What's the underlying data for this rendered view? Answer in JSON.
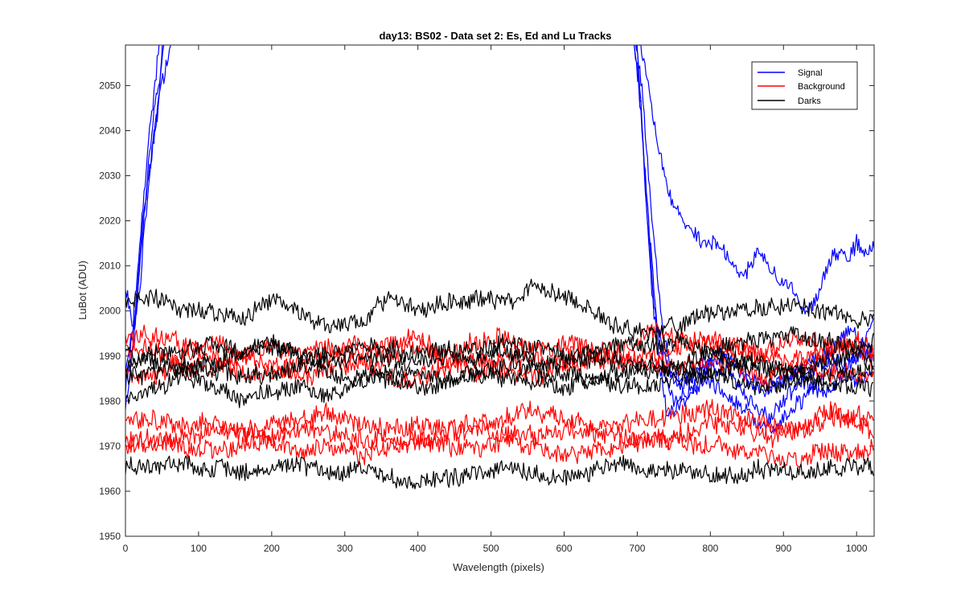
{
  "chart_data": {
    "type": "line",
    "title": "day13: BS02 - Data set 2: Es, Ed and Lu Tracks",
    "xlabel": "Wavelength (pixels)",
    "ylabel": "LuBot (ADU)",
    "xlim": [
      0,
      1024
    ],
    "ylim": [
      1950,
      2059
    ],
    "xticks": [
      0,
      100,
      200,
      300,
      400,
      500,
      600,
      700,
      800,
      900,
      1000
    ],
    "yticks": [
      1950,
      1960,
      1970,
      1980,
      1990,
      2000,
      2010,
      2020,
      2030,
      2040,
      2050
    ],
    "grid": false,
    "legend": {
      "position": "top-right",
      "entries": [
        {
          "label": "Signal",
          "color": "#0000ff"
        },
        {
          "label": "Background",
          "color": "#ff0000"
        },
        {
          "label": "Darks",
          "color": "#000000"
        }
      ]
    },
    "series": [
      {
        "group": "Signal",
        "color": "#0000ff",
        "noise": 1.6,
        "seed": 11,
        "x": [
          0,
          10,
          20,
          30,
          40,
          50,
          60,
          66,
          690,
          700,
          710,
          720,
          730,
          740,
          760,
          780,
          800,
          820,
          840,
          860,
          880,
          900,
          920,
          940,
          960,
          980,
          1000,
          1024
        ],
        "y": [
          2006,
          1995,
          2005,
          2025,
          2040,
          2050,
          2058,
          2062,
          2062,
          2060,
          2030,
          2005,
          1988,
          1978,
          1979,
          1983,
          1988,
          1987,
          1983,
          1979,
          1976,
          1980,
          1984,
          1987,
          1989,
          1986,
          1984,
          1987
        ]
      },
      {
        "group": "Signal",
        "color": "#0000ff",
        "noise": 1.6,
        "seed": 12,
        "x": [
          0,
          10,
          20,
          30,
          40,
          50,
          56,
          695,
          705,
          715,
          725,
          735,
          750,
          770,
          790,
          810,
          830,
          850,
          870,
          890,
          910,
          930,
          950,
          970,
          990,
          1010,
          1024
        ],
        "y": [
          1978,
          1990,
          2010,
          2030,
          2045,
          2055,
          2062,
          2062,
          2045,
          2020,
          2000,
          1988,
          1980,
          1982,
          1985,
          1983,
          1980,
          1977,
          1974,
          1975,
          1978,
          1981,
          1985,
          1992,
          1995,
          1993,
          1998
        ]
      },
      {
        "group": "Signal",
        "color": "#0000ff",
        "noise": 1.6,
        "seed": 13,
        "x": [
          0,
          12,
          24,
          36,
          46,
          52,
          690,
          700,
          712,
          724,
          736,
          750,
          770,
          790,
          810,
          830,
          850,
          870,
          890,
          910,
          930,
          950,
          970,
          990,
          1010,
          1024
        ],
        "y": [
          1983,
          1998,
          2020,
          2035,
          2048,
          2062,
          2062,
          2055,
          2025,
          2000,
          1990,
          1985,
          1986,
          1988,
          1991,
          1988,
          1985,
          1982,
          1983,
          1986,
          1984,
          1982,
          1983,
          1988,
          1991,
          1989
        ]
      },
      {
        "group": "Signal",
        "color": "#0000ff",
        "noise": 1.6,
        "seed": 14,
        "x": [
          0,
          10,
          20,
          30,
          40,
          48,
          696,
          706,
          716,
          726,
          736,
          746,
          760,
          780,
          800,
          820,
          840,
          860,
          880,
          900,
          920,
          940,
          960,
          980,
          1000,
          1024
        ],
        "y": [
          1986,
          1996,
          2015,
          2035,
          2050,
          2062,
          2062,
          2050,
          2030,
          2010,
          1995,
          1987,
          1984,
          1986,
          1989,
          1990,
          1987,
          1985,
          1983,
          1984,
          1987,
          1989,
          1991,
          1988,
          1990,
          1992
        ]
      },
      {
        "group": "Signal",
        "color": "#0000ff",
        "noise": 1.6,
        "seed": 15,
        "x": [
          700,
          710,
          720,
          730,
          740,
          750,
          760,
          770,
          780,
          790,
          800,
          810,
          820,
          830,
          840,
          850,
          860,
          870,
          880,
          890,
          900,
          910,
          920,
          930,
          940,
          950,
          960,
          970,
          980,
          990,
          1000,
          1010,
          1024
        ],
        "y": [
          2062,
          2055,
          2045,
          2035,
          2028,
          2023,
          2021,
          2019,
          2017,
          2016,
          2016,
          2015,
          2013,
          2011,
          2008,
          2008,
          2012,
          2013,
          2010,
          2008,
          2006,
          2006,
          2003,
          2000,
          2001,
          2005,
          2010,
          2013,
          2013,
          2012,
          2015,
          2013,
          2015
        ]
      },
      {
        "group": "Background",
        "color": "#ff0000",
        "noise": 2.0,
        "seed": 21,
        "x": [
          0,
          40,
          80,
          120,
          160,
          200,
          240,
          280,
          320,
          360,
          400,
          440,
          480,
          520,
          560,
          600,
          640,
          680,
          720,
          760,
          800,
          840,
          880,
          920,
          960,
          1000,
          1024
        ],
        "y": [
          1994,
          1994,
          1993,
          1990,
          1986,
          1986,
          1989,
          1990,
          1993,
          1990,
          1992,
          1990,
          1993,
          1994,
          1991,
          1993,
          1991,
          1992,
          1995,
          1994,
          1994,
          1991,
          1989,
          1990,
          1990,
          1994,
          1991
        ]
      },
      {
        "group": "Background",
        "color": "#ff0000",
        "noise": 2.0,
        "seed": 22,
        "x": [
          0,
          40,
          80,
          120,
          160,
          200,
          240,
          280,
          320,
          360,
          400,
          440,
          480,
          520,
          560,
          600,
          640,
          680,
          720,
          760,
          800,
          840,
          880,
          920,
          960,
          1000,
          1024
        ],
        "y": [
          1990,
          1992,
          1987,
          1987,
          1990,
          1992,
          1991,
          1992,
          1990,
          1993,
          1995,
          1988,
          1986,
          1990,
          1989,
          1988,
          1989,
          1990,
          1988,
          1988,
          1989,
          1987,
          1985,
          1988,
          1987,
          1985,
          1987
        ]
      },
      {
        "group": "Background",
        "color": "#ff0000",
        "noise": 2.0,
        "seed": 23,
        "x": [
          0,
          40,
          80,
          120,
          160,
          200,
          240,
          280,
          320,
          360,
          400,
          440,
          480,
          520,
          560,
          600,
          640,
          680,
          720,
          760,
          800,
          840,
          880,
          920,
          960,
          1000,
          1024
        ],
        "y": [
          1986,
          1985,
          1990,
          1993,
          1990,
          1988,
          1985,
          1987,
          1989,
          1986,
          1985,
          1987,
          1989,
          1987,
          1985,
          1989,
          1991,
          1988,
          1990,
          1991,
          1993,
          1992,
          1991,
          1994,
          1992,
          1991,
          1990
        ]
      },
      {
        "group": "Background",
        "color": "#ff0000",
        "noise": 2.0,
        "seed": 24,
        "x": [
          0,
          40,
          80,
          120,
          160,
          200,
          240,
          280,
          320,
          360,
          400,
          440,
          480,
          520,
          560,
          600,
          640,
          680,
          720,
          760,
          800,
          840,
          880,
          920,
          960,
          1000,
          1024
        ],
        "y": [
          1975,
          1976,
          1974,
          1975,
          1973,
          1975,
          1976,
          1977,
          1975,
          1973,
          1975,
          1974,
          1975,
          1976,
          1978,
          1976,
          1974,
          1975,
          1976,
          1977,
          1978,
          1976,
          1975,
          1973,
          1976,
          1977,
          1975
        ]
      },
      {
        "group": "Background",
        "color": "#ff0000",
        "noise": 2.0,
        "seed": 25,
        "x": [
          0,
          40,
          80,
          120,
          160,
          200,
          240,
          280,
          320,
          360,
          400,
          440,
          480,
          520,
          560,
          600,
          640,
          680,
          720,
          760,
          800,
          840,
          880,
          920,
          960,
          1000,
          1024
        ],
        "y": [
          1972,
          1970,
          1972,
          1974,
          1973,
          1972,
          1974,
          1973,
          1971,
          1972,
          1971,
          1973,
          1974,
          1973,
          1972,
          1974,
          1973,
          1972,
          1971,
          1973,
          1975,
          1974,
          1972,
          1974,
          1978,
          1975,
          1973
        ]
      },
      {
        "group": "Background",
        "color": "#ff0000",
        "noise": 2.0,
        "seed": 26,
        "x": [
          0,
          40,
          80,
          120,
          160,
          200,
          240,
          280,
          320,
          360,
          400,
          440,
          480,
          520,
          560,
          600,
          640,
          680,
          720,
          760,
          800,
          840,
          880,
          920,
          960,
          1000,
          1024
        ],
        "y": [
          1970,
          1972,
          1970,
          1968,
          1970,
          1971,
          1969,
          1970,
          1968,
          1969,
          1971,
          1970,
          1969,
          1971,
          1970,
          1968,
          1969,
          1970,
          1972,
          1971,
          1970,
          1969,
          1968,
          1967,
          1969,
          1968,
          1970
        ]
      },
      {
        "group": "Darks",
        "color": "#000000",
        "noise": 1.8,
        "seed": 31,
        "x": [
          0,
          40,
          80,
          120,
          160,
          200,
          240,
          280,
          320,
          360,
          400,
          440,
          480,
          520,
          560,
          600,
          640,
          680,
          720,
          760,
          800,
          840,
          880,
          920,
          960,
          1000,
          1024
        ],
        "y": [
          2002,
          2003,
          2000,
          2000,
          1998,
          2003,
          1999,
          1997,
          1997,
          2003,
          2000,
          2002,
          2003,
          2002,
          2006,
          2003,
          2000,
          1996,
          1995,
          1997,
          2000,
          2000,
          2001,
          2001,
          2000,
          1998,
          1999
        ]
      },
      {
        "group": "Darks",
        "color": "#000000",
        "noise": 1.8,
        "seed": 32,
        "x": [
          0,
          40,
          80,
          120,
          160,
          200,
          240,
          280,
          320,
          360,
          400,
          440,
          480,
          520,
          560,
          600,
          640,
          680,
          720,
          760,
          800,
          840,
          880,
          920,
          960,
          1000,
          1024
        ],
        "y": [
          1988,
          1990,
          1991,
          1993,
          1991,
          1992,
          1990,
          1990,
          1993,
          1992,
          1990,
          1992,
          1991,
          1993,
          1992,
          1990,
          1991,
          1993,
          1992,
          1993,
          1991,
          1993,
          1994,
          1995,
          1993,
          1992,
          1993
        ]
      },
      {
        "group": "Darks",
        "color": "#000000",
        "noise": 1.8,
        "seed": 33,
        "x": [
          0,
          40,
          80,
          120,
          160,
          200,
          240,
          280,
          320,
          360,
          400,
          440,
          480,
          520,
          560,
          600,
          640,
          680,
          720,
          760,
          800,
          840,
          880,
          920,
          960,
          1000,
          1024
        ],
        "y": [
          1990,
          1989,
          1987,
          1988,
          1991,
          1993,
          1990,
          1988,
          1990,
          1989,
          1988,
          1990,
          1989,
          1991,
          1989,
          1988,
          1990,
          1989,
          1987,
          1988,
          1990,
          1989,
          1988,
          1987,
          1989,
          1990,
          1989
        ]
      },
      {
        "group": "Darks",
        "color": "#000000",
        "noise": 1.8,
        "seed": 34,
        "x": [
          0,
          40,
          80,
          120,
          160,
          200,
          240,
          280,
          320,
          360,
          400,
          440,
          480,
          520,
          560,
          600,
          640,
          680,
          720,
          760,
          800,
          840,
          880,
          920,
          960,
          1000,
          1024
        ],
        "y": [
          1985,
          1986,
          1988,
          1987,
          1985,
          1986,
          1988,
          1986,
          1985,
          1987,
          1986,
          1985,
          1986,
          1988,
          1987,
          1986,
          1985,
          1986,
          1988,
          1987,
          1986,
          1988,
          1987,
          1986,
          1985,
          1986,
          1987
        ]
      },
      {
        "group": "Darks",
        "color": "#000000",
        "noise": 1.8,
        "seed": 35,
        "x": [
          0,
          40,
          80,
          120,
          160,
          200,
          240,
          280,
          320,
          360,
          400,
          440,
          480,
          520,
          560,
          600,
          640,
          680,
          720,
          760,
          800,
          840,
          880,
          920,
          960,
          1000,
          1024
        ],
        "y": [
          1980,
          1983,
          1986,
          1983,
          1980,
          1982,
          1983,
          1981,
          1984,
          1985,
          1983,
          1984,
          1986,
          1985,
          1984,
          1983,
          1985,
          1984,
          1983,
          1985,
          1986,
          1984,
          1983,
          1985,
          1984,
          1983,
          1983
        ]
      },
      {
        "group": "Darks",
        "color": "#000000",
        "noise": 1.8,
        "seed": 36,
        "x": [
          0,
          40,
          80,
          120,
          160,
          200,
          240,
          280,
          320,
          360,
          400,
          440,
          480,
          520,
          560,
          600,
          640,
          680,
          720,
          760,
          800,
          840,
          880,
          920,
          960,
          1000,
          1024
        ],
        "y": [
          1966,
          1965,
          1966,
          1965,
          1964,
          1965,
          1966,
          1964,
          1965,
          1963,
          1962,
          1963,
          1964,
          1965,
          1964,
          1963,
          1965,
          1966,
          1964,
          1965,
          1963,
          1964,
          1965,
          1964,
          1965,
          1966,
          1965
        ]
      }
    ]
  }
}
